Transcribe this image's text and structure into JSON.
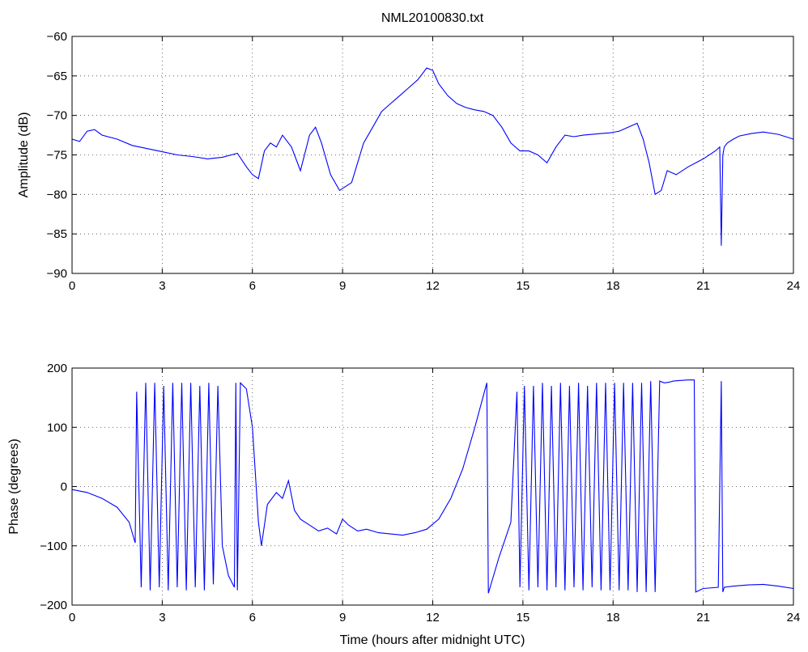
{
  "chart_data": [
    {
      "type": "line",
      "title": "NML20100830.txt",
      "xlabel": "",
      "ylabel": "Amplitude (dB)",
      "xlim": [
        0,
        24
      ],
      "ylim": [
        -90,
        -60
      ],
      "xticks": [
        0,
        3,
        6,
        9,
        12,
        15,
        18,
        21,
        24
      ],
      "yticks": [
        -90,
        -85,
        -80,
        -75,
        -70,
        -65,
        -60
      ],
      "grid": true,
      "color": "#0000ff",
      "series": [
        {
          "x": [
            0,
            0.25,
            0.5,
            0.75,
            1,
            1.5,
            2,
            2.5,
            3,
            3.5,
            4,
            4.5,
            5,
            5.5,
            5.8,
            6,
            6.2,
            6.4,
            6.6,
            6.8,
            7,
            7.3,
            7.6,
            7.9,
            8.1,
            8.3,
            8.6,
            8.9,
            9.1,
            9.3,
            9.5,
            9.7,
            10,
            10.3,
            10.6,
            10.9,
            11.2,
            11.5,
            11.8,
            12,
            12.2,
            12.5,
            12.8,
            13.1,
            13.4,
            13.7,
            14,
            14.3,
            14.6,
            14.9,
            15.2,
            15.5,
            15.8,
            16.1,
            16.4,
            16.7,
            17,
            17.3,
            17.6,
            17.9,
            18.2,
            18.5,
            18.8,
            19,
            19.2,
            19.4,
            19.6,
            19.8,
            20.1,
            20.5,
            21,
            21.4,
            21.55,
            21.6,
            21.65,
            21.7,
            21.8,
            22,
            22.2,
            22.6,
            23,
            23.5,
            24
          ],
          "values": [
            -73,
            -73.3,
            -72,
            -71.8,
            -72.5,
            -73,
            -73.8,
            -74.2,
            -74.6,
            -75,
            -75.2,
            -75.5,
            -75.3,
            -74.8,
            -76.5,
            -77.5,
            -78,
            -74.5,
            -73.5,
            -74,
            -72.5,
            -74,
            -77,
            -72.5,
            -71.5,
            -73.5,
            -77.5,
            -79.5,
            -79,
            -78.5,
            -76,
            -73.5,
            -71.5,
            -69.5,
            -68.5,
            -67.5,
            -66.5,
            -65.5,
            -64,
            -64.3,
            -66,
            -67.5,
            -68.5,
            -69,
            -69.3,
            -69.5,
            -70,
            -71.5,
            -73.5,
            -74.5,
            -74.5,
            -75,
            -76,
            -74,
            -72.5,
            -72.7,
            -72.5,
            -72.4,
            -72.3,
            -72.2,
            -72,
            -71.5,
            -71,
            -73,
            -76,
            -80,
            -79.5,
            -77,
            -77.5,
            -76.5,
            -75.5,
            -74.5,
            -74,
            -86.5,
            -75,
            -74,
            -73.5,
            -73,
            -72.6,
            -72.3,
            -72.1,
            -72.4,
            -73
          ]
        }
      ]
    },
    {
      "type": "line",
      "title": "",
      "xlabel": "Time (hours after midnight UTC)",
      "ylabel": "Phase (degrees)",
      "xlim": [
        0,
        24
      ],
      "ylim": [
        -200,
        200
      ],
      "xticks": [
        0,
        3,
        6,
        9,
        12,
        15,
        18,
        21,
        24
      ],
      "yticks": [
        -200,
        -100,
        0,
        100,
        200
      ],
      "grid": true,
      "color": "#0000ff",
      "series": [
        {
          "x": [
            0,
            0.5,
            1,
            1.5,
            1.9,
            2.1,
            2.15,
            2.3,
            2.45,
            2.6,
            2.75,
            2.9,
            3.05,
            3.2,
            3.35,
            3.5,
            3.65,
            3.8,
            3.95,
            4.1,
            4.25,
            4.4,
            4.55,
            4.7,
            4.85,
            5.0,
            5.2,
            5.4,
            5.45,
            5.5,
            5.6,
            5.8,
            6.0,
            6.2,
            6.3,
            6.5,
            6.8,
            7.0,
            7.2,
            7.4,
            7.6,
            7.9,
            8.2,
            8.5,
            8.8,
            9.0,
            9.2,
            9.5,
            9.8,
            10.2,
            10.6,
            11.0,
            11.4,
            11.8,
            12.2,
            12.6,
            13.0,
            13.4,
            13.8,
            13.85,
            14.2,
            14.6,
            14.8,
            14.9,
            15.05,
            15.2,
            15.35,
            15.5,
            15.65,
            15.8,
            15.95,
            16.1,
            16.25,
            16.4,
            16.55,
            16.7,
            16.85,
            17.0,
            17.15,
            17.3,
            17.45,
            17.6,
            17.75,
            17.9,
            18.05,
            18.2,
            18.35,
            18.5,
            18.65,
            18.8,
            18.95,
            19.1,
            19.25,
            19.4,
            19.55,
            19.7,
            19.85,
            20.0,
            20.2,
            20.5,
            20.7,
            20.75,
            21.0,
            21.5,
            21.6,
            21.65,
            21.7,
            22.0,
            22.5,
            23.0,
            23.5,
            24
          ],
          "values": [
            -5,
            -10,
            -20,
            -35,
            -60,
            -95,
            160,
            -170,
            175,
            -175,
            175,
            -170,
            170,
            -175,
            175,
            -170,
            175,
            -175,
            175,
            -170,
            170,
            -175,
            175,
            -165,
            170,
            -100,
            -150,
            -170,
            175,
            -175,
            175,
            165,
            100,
            -60,
            -100,
            -30,
            -10,
            -20,
            10,
            -40,
            -55,
            -65,
            -75,
            -70,
            -80,
            -55,
            -65,
            -75,
            -72,
            -78,
            -80,
            -82,
            -78,
            -72,
            -55,
            -20,
            30,
            100,
            175,
            -180,
            -120,
            -60,
            160,
            -170,
            170,
            -175,
            170,
            -170,
            175,
            -175,
            170,
            -170,
            175,
            -175,
            170,
            -170,
            175,
            -175,
            170,
            -170,
            175,
            -175,
            175,
            -175,
            175,
            -175,
            175,
            -175,
            175,
            -178,
            175,
            -178,
            178,
            -178,
            178,
            175,
            176,
            178,
            179,
            180,
            180,
            -178,
            -172,
            -170,
            178,
            -178,
            -170,
            -168,
            -166,
            -165,
            -168,
            -172
          ]
        }
      ]
    }
  ]
}
